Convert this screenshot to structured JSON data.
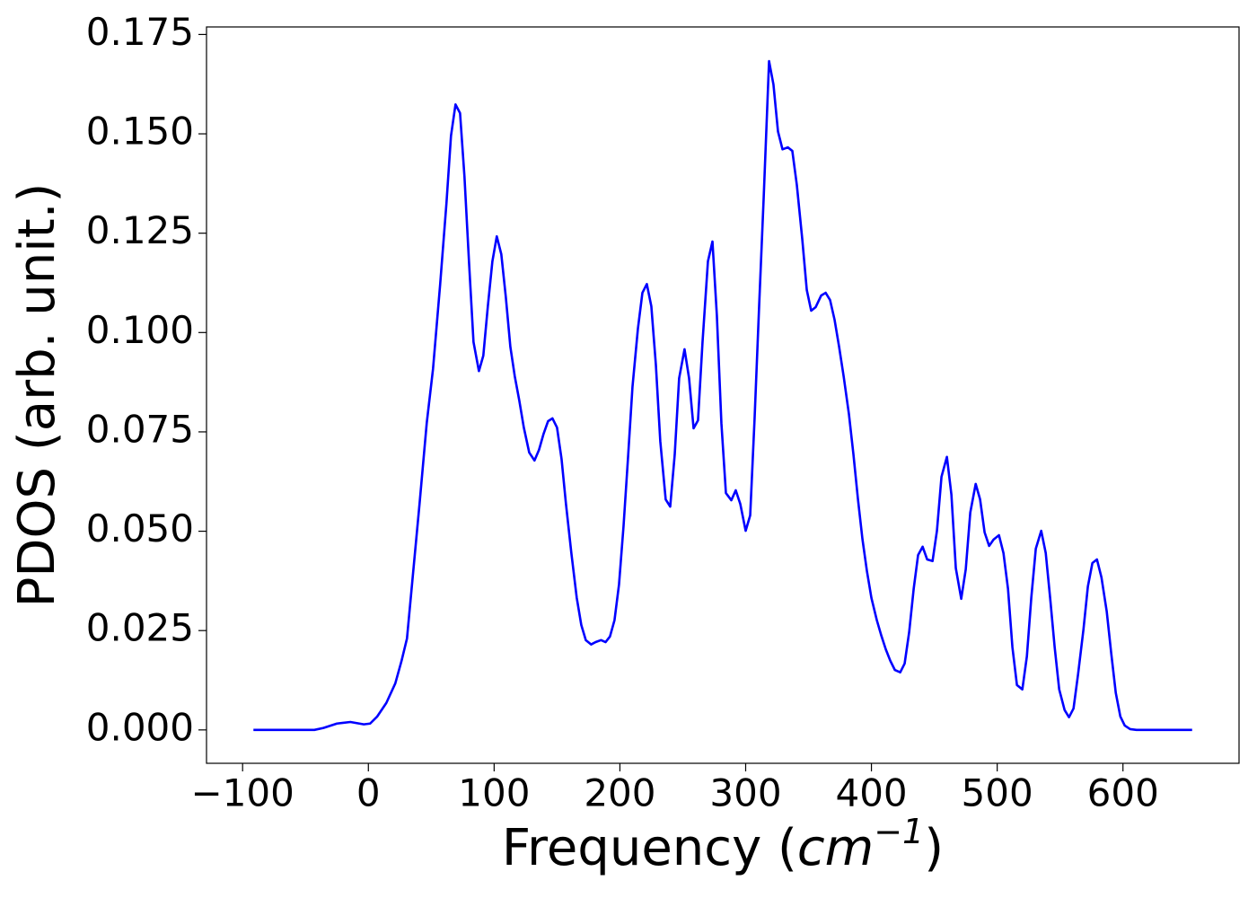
{
  "chart_data": {
    "type": "line",
    "xlabel": [
      "Frequency (",
      "cm",
      "−1",
      ")"
    ],
    "ylabel": "PDOS (arb. unit.)",
    "color": "#0000ff",
    "x": [
      -91.4,
      -42.9,
      -35.7,
      -25.0,
      -14.3,
      -3.6,
      1.4,
      7.1,
      14.3,
      21.4,
      26.4,
      30.7,
      35.7,
      40.7,
      46.4,
      51.4,
      57.1,
      62.1,
      65.7,
      69.3,
      72.9,
      76.4,
      80.0,
      83.6,
      87.9,
      91.4,
      95.0,
      98.6,
      102.1,
      105.7,
      109.3,
      112.9,
      116.4,
      120.0,
      123.6,
      127.9,
      132.1,
      135.7,
      139.3,
      142.9,
      146.4,
      150.0,
      153.6,
      157.1,
      161.4,
      165.7,
      169.3,
      172.9,
      177.1,
      180.7,
      185.0,
      188.6,
      192.1,
      195.7,
      199.3,
      202.9,
      206.4,
      210.0,
      214.3,
      217.9,
      221.4,
      225.0,
      228.6,
      232.1,
      236.4,
      240.0,
      243.6,
      247.1,
      251.4,
      255.0,
      258.6,
      262.1,
      265.7,
      270.0,
      273.6,
      277.1,
      280.7,
      284.3,
      288.6,
      292.1,
      295.7,
      300.0,
      303.6,
      307.1,
      310.7,
      314.3,
      318.6,
      322.1,
      325.7,
      329.3,
      333.6,
      337.1,
      340.7,
      345.0,
      348.6,
      352.1,
      355.7,
      360.0,
      363.6,
      367.1,
      370.7,
      374.3,
      377.9,
      382.1,
      385.7,
      389.3,
      392.9,
      396.4,
      400.0,
      404.3,
      407.9,
      411.4,
      415.0,
      418.6,
      422.9,
      426.4,
      430.0,
      433.6,
      437.1,
      440.7,
      444.3,
      448.6,
      452.1,
      455.7,
      460.0,
      463.6,
      467.1,
      471.4,
      475.0,
      478.6,
      482.9,
      486.4,
      490.0,
      493.6,
      497.1,
      501.4,
      505.0,
      508.6,
      512.1,
      515.7,
      520.0,
      523.6,
      527.1,
      530.7,
      535.0,
      538.6,
      542.1,
      545.7,
      549.3,
      553.6,
      557.1,
      560.7,
      564.3,
      568.6,
      572.1,
      575.7,
      579.3,
      582.9,
      587.1,
      590.7,
      594.3,
      597.9,
      601.4,
      605.7,
      610.7,
      655.0
    ],
    "values": [
      0,
      0,
      0.0005,
      0.0016,
      0.002,
      0.0014,
      0.0016,
      0.0034,
      0.0068,
      0.0117,
      0.0174,
      0.023,
      0.04,
      0.0569,
      0.0772,
      0.0908,
      0.1122,
      0.1326,
      0.1495,
      0.1574,
      0.1552,
      0.1393,
      0.1179,
      0.0976,
      0.0903,
      0.0942,
      0.1066,
      0.1179,
      0.1242,
      0.1197,
      0.1089,
      0.0964,
      0.089,
      0.0829,
      0.0761,
      0.0698,
      0.0678,
      0.0705,
      0.0745,
      0.0777,
      0.0784,
      0.0761,
      0.0682,
      0.0569,
      0.0445,
      0.0332,
      0.0264,
      0.0226,
      0.0215,
      0.0221,
      0.0226,
      0.0221,
      0.0235,
      0.0276,
      0.0366,
      0.0513,
      0.0682,
      0.0863,
      0.1009,
      0.11,
      0.1122,
      0.1066,
      0.0919,
      0.0727,
      0.058,
      0.0562,
      0.0693,
      0.0885,
      0.0958,
      0.0885,
      0.0759,
      0.0779,
      0.0976,
      0.1179,
      0.1229,
      0.1043,
      0.0772,
      0.0596,
      0.0578,
      0.0603,
      0.0569,
      0.0501,
      0.054,
      0.0784,
      0.1066,
      0.1337,
      0.1683,
      0.1624,
      0.1506,
      0.1461,
      0.1466,
      0.1457,
      0.1371,
      0.1235,
      0.1107,
      0.1055,
      0.1064,
      0.1093,
      0.11,
      0.1082,
      0.1032,
      0.0964,
      0.089,
      0.0795,
      0.0693,
      0.058,
      0.0479,
      0.04,
      0.0332,
      0.0276,
      0.0237,
      0.0203,
      0.0174,
      0.0151,
      0.0145,
      0.0167,
      0.0246,
      0.0355,
      0.044,
      0.0461,
      0.0429,
      0.0425,
      0.0501,
      0.0637,
      0.0687,
      0.0592,
      0.0407,
      0.033,
      0.0404,
      0.0547,
      0.0619,
      0.058,
      0.0497,
      0.0463,
      0.0479,
      0.049,
      0.0445,
      0.0355,
      0.0208,
      0.0113,
      0.0102,
      0.0185,
      0.0332,
      0.0456,
      0.0501,
      0.0445,
      0.0332,
      0.0208,
      0.0102,
      0.005,
      0.0032,
      0.0054,
      0.014,
      0.0253,
      0.0361,
      0.042,
      0.0429,
      0.0384,
      0.0298,
      0.0192,
      0.0093,
      0.0034,
      0.0011,
      0.0002,
      0,
      0
    ],
    "xlim": [
      -128.7,
      692.3
    ],
    "ylim": [
      -0.0084,
      0.1769
    ],
    "xticks": [
      {
        "value": -100,
        "label": "−100"
      },
      0,
      100,
      200,
      300,
      400,
      500,
      600
    ],
    "yticks": [
      {
        "value": 0,
        "label": "0.000"
      },
      {
        "value": 0.025,
        "label": "0.025"
      },
      {
        "value": 0.05,
        "label": "0.050"
      },
      {
        "value": 0.075,
        "label": "0.075"
      },
      {
        "value": 0.1,
        "label": "0.100"
      },
      {
        "value": 0.125,
        "label": "0.125"
      },
      {
        "value": 0.15,
        "label": "0.150"
      },
      {
        "value": 0.175,
        "label": "0.175"
      }
    ]
  }
}
